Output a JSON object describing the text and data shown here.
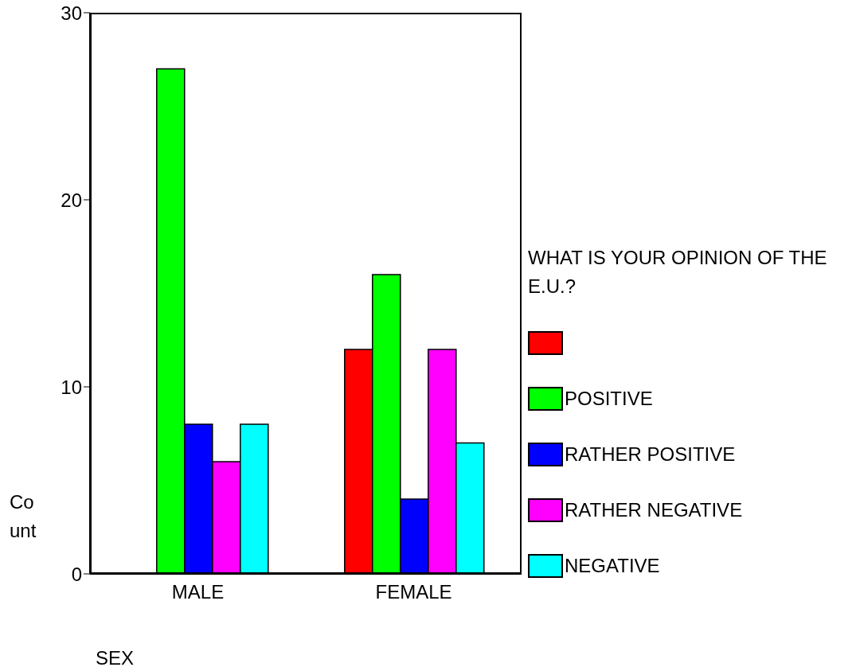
{
  "chart_data": {
    "type": "bar",
    "xlabel": "SEX",
    "ylabel": "Count",
    "legend_title": "WHAT IS YOUR OPINION OF THE E.U.?",
    "categories": [
      "MALE",
      "FEMALE"
    ],
    "series": [
      {
        "color": "#ff0000",
        "values": [
          0,
          12
        ]
      },
      {
        "name": "POSITIVE",
        "color": "#00ff00",
        "values": [
          27,
          16
        ]
      },
      {
        "name": "RATHER POSITIVE",
        "color": "#0000ff",
        "values": [
          8,
          4
        ]
      },
      {
        "name": "RATHER NEGATIVE",
        "color": "#ff00ff",
        "values": [
          6,
          12
        ]
      },
      {
        "name": "NEGATIVE",
        "color": "#00ffff",
        "values": [
          8,
          7
        ]
      }
    ],
    "ylim": [
      0,
      30
    ],
    "yticks": [
      0,
      10,
      20,
      30
    ],
    "legend": "right",
    "grid": false
  }
}
